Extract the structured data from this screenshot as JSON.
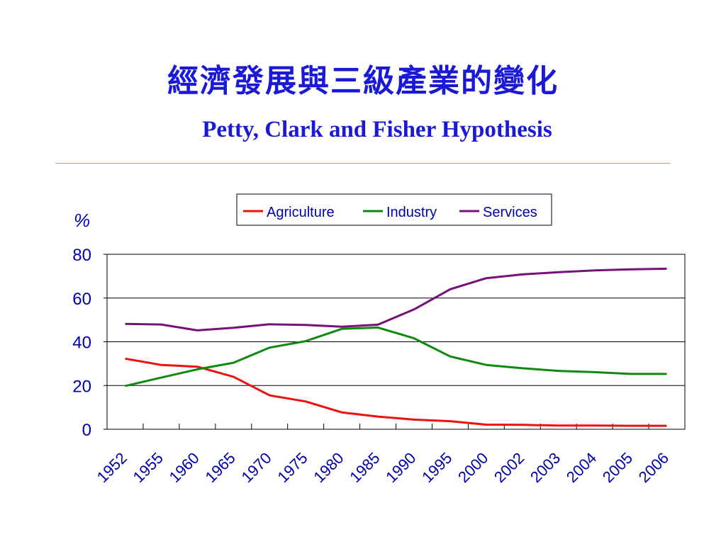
{
  "slide": {
    "title_zh": "經濟發展與三級產業的變化",
    "title_en": "Petty, Clark and Fisher Hypothesis"
  },
  "colors": {
    "title": "#1a1ad6",
    "rule": "#e8a64a",
    "axis_text": "#0000aa",
    "agriculture": "#ee1111",
    "industry": "#118811",
    "services": "#771177"
  },
  "chart_data": {
    "type": "line",
    "title": "",
    "xlabel": "",
    "ylabel": "%",
    "ylim": [
      0,
      80
    ],
    "yticks": [
      "0",
      "20",
      "40",
      "60",
      "80"
    ],
    "grid": "horizontal",
    "legend": "top-right",
    "categories": [
      "1952",
      "1955",
      "1960",
      "1965",
      "1970",
      "1975",
      "1980",
      "1985",
      "1990",
      "1995",
      "2000",
      "2002",
      "2003",
      "2004",
      "2005",
      "2006"
    ],
    "series": [
      {
        "name": "Agriculture",
        "color": "#ee1111",
        "values": [
          32.3,
          29.4,
          28.6,
          24.0,
          15.5,
          12.7,
          7.7,
          5.8,
          4.4,
          3.7,
          2.1,
          2.0,
          1.7,
          1.7,
          1.6,
          1.6
        ]
      },
      {
        "name": "Industry",
        "color": "#118811",
        "values": [
          19.8,
          23.6,
          27.4,
          30.4,
          37.3,
          40.3,
          45.9,
          46.5,
          41.6,
          33.3,
          29.4,
          27.9,
          26.7,
          26.1,
          25.3,
          25.3
        ]
      },
      {
        "name": "Services",
        "color": "#771177",
        "values": [
          48.2,
          47.9,
          45.2,
          46.4,
          48.0,
          47.7,
          46.9,
          47.8,
          54.8,
          64.0,
          69.1,
          70.8,
          71.8,
          72.6,
          73.1,
          73.4
        ]
      }
    ]
  }
}
